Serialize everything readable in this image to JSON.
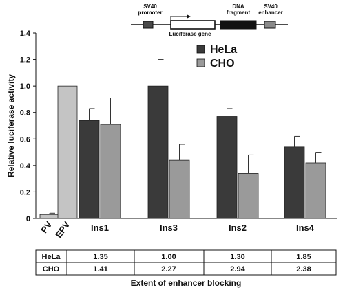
{
  "chart_data": {
    "type": "bar",
    "ylabel": "Relative luciferase activity",
    "ylim": [
      0,
      1.4
    ],
    "yticks": [
      "0",
      "0.2",
      "0.4",
      "0.6",
      "0.8",
      "1.0",
      "1.2",
      "1.4"
    ],
    "single_bars": [
      {
        "category": "PV",
        "value": 0.03,
        "error": 0.01
      },
      {
        "category": "EPV",
        "value": 1.0,
        "error": 0
      }
    ],
    "groups": [
      "Ins1",
      "Ins3",
      "Ins2",
      "Ins4"
    ],
    "series": [
      {
        "name": "HeLa",
        "values": [
          0.74,
          1.0,
          0.77,
          0.54
        ],
        "errors": [
          0.09,
          0.2,
          0.06,
          0.08
        ]
      },
      {
        "name": "CHO",
        "values": [
          0.71,
          0.44,
          0.34,
          0.42
        ],
        "errors": [
          0.2,
          0.12,
          0.14,
          0.08
        ]
      }
    ],
    "legend_position": "top-right"
  },
  "colors": {
    "HeLa": "#3a3a3a",
    "CHO": "#9a9a9a",
    "EPV": "#c4c4c4",
    "PV": "#c4c4c4"
  },
  "construct_diagram": {
    "sv40_promoter": "SV40\npromoter",
    "luciferase_gene": "Luciferase gene",
    "dna_fragment": "DNA\nfragment",
    "sv40_enhancer": "SV40\nenhancer"
  },
  "blocking_table": {
    "rows": [
      {
        "label": "HeLa",
        "values": [
          "1.35",
          "1.00",
          "1.30",
          "1.85"
        ]
      },
      {
        "label": "CHO",
        "values": [
          "1.41",
          "2.27",
          "2.94",
          "2.38"
        ]
      }
    ],
    "caption": "Extent of enhancer blocking"
  }
}
